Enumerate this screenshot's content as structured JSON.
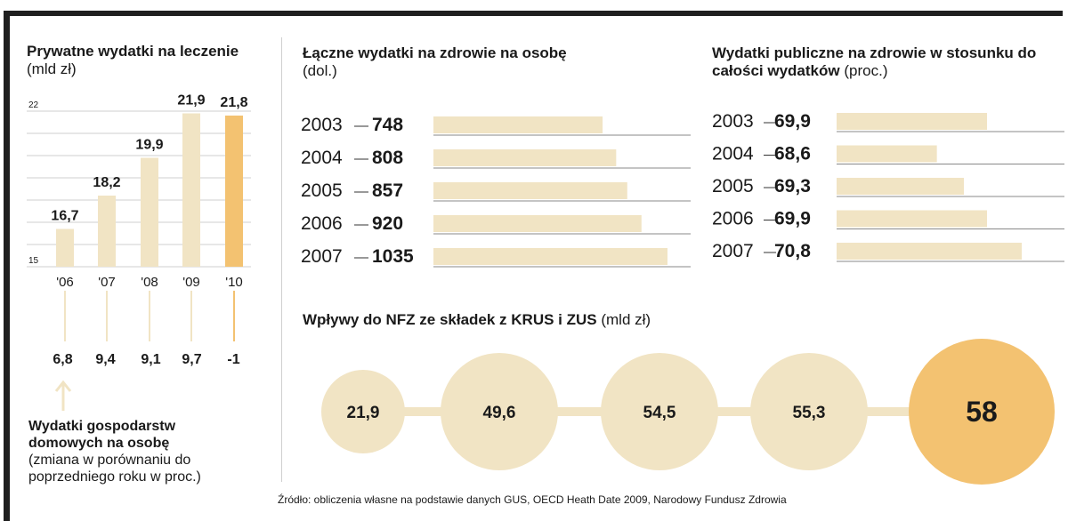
{
  "colors": {
    "bar": "#f1e4c4",
    "highlight": "#f3c271",
    "grid": "#cfcfcf",
    "frame": "#1f1f1f",
    "text": "#1a1a1a"
  },
  "private_spending": {
    "title": "Prywatne wydatki na leczenie",
    "unit": "(mld zł)"
  },
  "household": {
    "title": "Wydatki gospodarstw domowych na osobę",
    "note": "(zmiana w porównaniu do poprzedniego roku w proc.)",
    "values": [
      "6,8",
      "9,4",
      "9,1",
      "9,7",
      "-1"
    ]
  },
  "total_per_capita": {
    "title": "Łączne wydatki na zdrowie na osobę",
    "unit": "(dol.)"
  },
  "public_share": {
    "title": "Wydatki publiczne na zdrowie w stosunku do całości wydatków",
    "unit": "(proc.)"
  },
  "nfz": {
    "title": "Wpływy do NFZ ze składek z KRUS i ZUS",
    "unit": "(mld zł)"
  },
  "source": "Źródło: obliczenia własne na podstawie danych GUS, OECD Heath Date 2009, Narodowy Fundusz Zdrowia",
  "chart_data": [
    {
      "type": "bar",
      "title": "Prywatne wydatki na leczenie",
      "ylabel": "(mld zł)",
      "categories": [
        "'06",
        "'07",
        "'08",
        "'09",
        "'10"
      ],
      "values": [
        16.7,
        18.2,
        19.9,
        21.9,
        21.8
      ],
      "labels": [
        "16,7",
        "18,2",
        "19,9",
        "21,9",
        "21,8"
      ],
      "ylim": [
        15,
        22
      ],
      "yticks": [
        15,
        22
      ],
      "highlight_index": 4
    },
    {
      "type": "bar",
      "orientation": "horizontal",
      "title": "Łączne wydatki na zdrowie na osobę",
      "ylabel": "(dol.)",
      "categories": [
        "2003",
        "2004",
        "2005",
        "2006",
        "2007"
      ],
      "values": [
        748,
        808,
        857,
        920,
        1035
      ],
      "labels": [
        "748",
        "808",
        "857",
        "920",
        "1035"
      ]
    },
    {
      "type": "bar",
      "orientation": "horizontal",
      "title": "Wydatki publiczne na zdrowie w stosunku do całości wydatków",
      "ylabel": "(proc.)",
      "categories": [
        "2003",
        "2004",
        "2005",
        "2006",
        "2007"
      ],
      "values": [
        69.9,
        68.6,
        69.3,
        69.9,
        70.8
      ],
      "labels": [
        "69,9",
        "68,6",
        "69,3",
        "69,9",
        "70,8"
      ]
    },
    {
      "type": "bubble",
      "title": "Wpływy do NFZ ze składek z KRUS i ZUS",
      "ylabel": "(mld zł)",
      "values": [
        21.9,
        49.6,
        54.5,
        55.3,
        58
      ],
      "labels": [
        "21,9",
        "49,6",
        "54,5",
        "55,3",
        "58"
      ],
      "highlight_index": 4
    }
  ]
}
